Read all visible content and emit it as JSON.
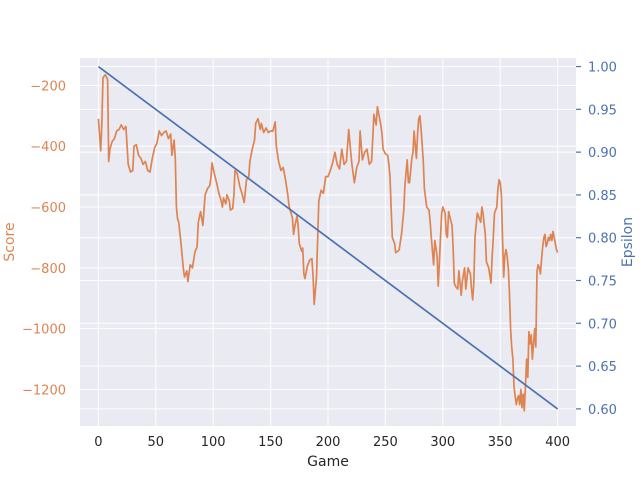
{
  "chart_data": {
    "type": "line",
    "title": "",
    "xlabel": "Game",
    "ylabel_left": "Score",
    "ylabel_right": "Epsilon",
    "xlim": [
      -16,
      416
    ],
    "ylim_left": [
      -1320,
      -110
    ],
    "ylim_right": [
      0.58,
      1.01
    ],
    "xticks": [
      0,
      50,
      100,
      150,
      200,
      250,
      300,
      350,
      400
    ],
    "yticks_left": [
      -200,
      -400,
      -600,
      -800,
      -1000,
      -1200
    ],
    "yticks_right": [
      1.0,
      0.95,
      0.9,
      0.85,
      0.8,
      0.75,
      0.7,
      0.65,
      0.6
    ],
    "grid": true,
    "colors": {
      "score": "#dd8452",
      "epsilon": "#4c72b0",
      "background": "#eaeaf2",
      "grid": "#ffffff",
      "tick_left": "#dd8452",
      "tick_right": "#4c72b0",
      "tick_bottom": "#262626"
    },
    "series": [
      {
        "axis": "left",
        "points": [
          [
            0,
            -310
          ],
          [
            2,
            -415
          ],
          [
            3,
            -330
          ],
          [
            4,
            -175
          ],
          [
            6,
            -165
          ],
          [
            8,
            -180
          ],
          [
            9,
            -450
          ],
          [
            10,
            -410
          ],
          [
            12,
            -385
          ],
          [
            14,
            -375
          ],
          [
            16,
            -350
          ],
          [
            18,
            -345
          ],
          [
            20,
            -330
          ],
          [
            22,
            -345
          ],
          [
            24,
            -335
          ],
          [
            26,
            -460
          ],
          [
            28,
            -485
          ],
          [
            30,
            -480
          ],
          [
            31,
            -400
          ],
          [
            33,
            -395
          ],
          [
            35,
            -430
          ],
          [
            37,
            -440
          ],
          [
            39,
            -460
          ],
          [
            41,
            -450
          ],
          [
            43,
            -480
          ],
          [
            45,
            -485
          ],
          [
            47,
            -440
          ],
          [
            49,
            -405
          ],
          [
            51,
            -390
          ],
          [
            53,
            -350
          ],
          [
            55,
            -365
          ],
          [
            57,
            -355
          ],
          [
            59,
            -350
          ],
          [
            61,
            -375
          ],
          [
            63,
            -360
          ],
          [
            64,
            -430
          ],
          [
            66,
            -380
          ],
          [
            67,
            -440
          ],
          [
            68,
            -600
          ],
          [
            69,
            -640
          ],
          [
            70,
            -650
          ],
          [
            72,
            -720
          ],
          [
            74,
            -800
          ],
          [
            75,
            -830
          ],
          [
            77,
            -810
          ],
          [
            78,
            -845
          ],
          [
            80,
            -790
          ],
          [
            82,
            -800
          ],
          [
            84,
            -750
          ],
          [
            86,
            -730
          ],
          [
            87,
            -650
          ],
          [
            89,
            -615
          ],
          [
            91,
            -660
          ],
          [
            93,
            -560
          ],
          [
            95,
            -540
          ],
          [
            97,
            -530
          ],
          [
            98,
            -505
          ],
          [
            99,
            -455
          ],
          [
            101,
            -490
          ],
          [
            103,
            -520
          ],
          [
            105,
            -555
          ],
          [
            107,
            -580
          ],
          [
            108,
            -600
          ],
          [
            109,
            -570
          ],
          [
            111,
            -590
          ],
          [
            112,
            -560
          ],
          [
            114,
            -580
          ],
          [
            115,
            -610
          ],
          [
            117,
            -605
          ],
          [
            118,
            -560
          ],
          [
            119,
            -480
          ],
          [
            121,
            -490
          ],
          [
            123,
            -530
          ],
          [
            125,
            -555
          ],
          [
            127,
            -585
          ],
          [
            129,
            -510
          ],
          [
            131,
            -500
          ],
          [
            132,
            -450
          ],
          [
            134,
            -410
          ],
          [
            136,
            -380
          ],
          [
            137,
            -325
          ],
          [
            139,
            -310
          ],
          [
            141,
            -345
          ],
          [
            142,
            -325
          ],
          [
            144,
            -355
          ],
          [
            146,
            -340
          ],
          [
            148,
            -355
          ],
          [
            150,
            -350
          ],
          [
            152,
            -350
          ],
          [
            154,
            -320
          ],
          [
            155,
            -400
          ],
          [
            157,
            -450
          ],
          [
            159,
            -480
          ],
          [
            161,
            -470
          ],
          [
            163,
            -510
          ],
          [
            165,
            -560
          ],
          [
            166,
            -595
          ],
          [
            167,
            -610
          ],
          [
            169,
            -635
          ],
          [
            170,
            -690
          ],
          [
            171,
            -665
          ],
          [
            173,
            -630
          ],
          [
            174,
            -660
          ],
          [
            175,
            -720
          ],
          [
            177,
            -745
          ],
          [
            178,
            -735
          ],
          [
            179,
            -820
          ],
          [
            180,
            -835
          ],
          [
            182,
            -795
          ],
          [
            184,
            -775
          ],
          [
            186,
            -770
          ],
          [
            187,
            -830
          ],
          [
            188,
            -920
          ],
          [
            190,
            -830
          ],
          [
            191,
            -700
          ],
          [
            192,
            -580
          ],
          [
            194,
            -545
          ],
          [
            196,
            -555
          ],
          [
            198,
            -500
          ],
          [
            200,
            -500
          ],
          [
            202,
            -480
          ],
          [
            204,
            -455
          ],
          [
            206,
            -420
          ],
          [
            208,
            -460
          ],
          [
            210,
            -475
          ],
          [
            212,
            -410
          ],
          [
            214,
            -460
          ],
          [
            216,
            -450
          ],
          [
            218,
            -345
          ],
          [
            220,
            -430
          ],
          [
            221,
            -465
          ],
          [
            223,
            -520
          ],
          [
            225,
            -470
          ],
          [
            227,
            -450
          ],
          [
            228,
            -350
          ],
          [
            230,
            -445
          ],
          [
            232,
            -420
          ],
          [
            234,
            -410
          ],
          [
            236,
            -460
          ],
          [
            238,
            -450
          ],
          [
            239,
            -370
          ],
          [
            240,
            -295
          ],
          [
            242,
            -330
          ],
          [
            243,
            -270
          ],
          [
            244,
            -290
          ],
          [
            246,
            -330
          ],
          [
            247,
            -360
          ],
          [
            248,
            -410
          ],
          [
            250,
            -425
          ],
          [
            252,
            -430
          ],
          [
            253,
            -460
          ],
          [
            254,
            -500
          ],
          [
            255,
            -600
          ],
          [
            256,
            -700
          ],
          [
            258,
            -720
          ],
          [
            259,
            -750
          ],
          [
            261,
            -745
          ],
          [
            262,
            -740
          ],
          [
            264,
            -690
          ],
          [
            266,
            -610
          ],
          [
            267,
            -530
          ],
          [
            269,
            -445
          ],
          [
            270,
            -520
          ],
          [
            271,
            -520
          ],
          [
            273,
            -440
          ],
          [
            274,
            -420
          ],
          [
            275,
            -350
          ],
          [
            277,
            -440
          ],
          [
            278,
            -360
          ],
          [
            279,
            -310
          ],
          [
            280,
            -300
          ],
          [
            281,
            -340
          ],
          [
            283,
            -450
          ],
          [
            284,
            -540
          ],
          [
            286,
            -600
          ],
          [
            288,
            -610
          ],
          [
            289,
            -650
          ],
          [
            290,
            -700
          ],
          [
            292,
            -790
          ],
          [
            293,
            -710
          ],
          [
            295,
            -760
          ],
          [
            296,
            -860
          ],
          [
            297,
            -780
          ],
          [
            298,
            -700
          ],
          [
            299,
            -620
          ],
          [
            300,
            -600
          ],
          [
            302,
            -620
          ],
          [
            303,
            -690
          ],
          [
            304,
            -700
          ],
          [
            305,
            -615
          ],
          [
            306,
            -630
          ],
          [
            308,
            -660
          ],
          [
            309,
            -730
          ],
          [
            310,
            -850
          ],
          [
            311,
            -860
          ],
          [
            313,
            -870
          ],
          [
            314,
            -810
          ],
          [
            316,
            -890
          ],
          [
            317,
            -845
          ],
          [
            319,
            -800
          ],
          [
            320,
            -870
          ],
          [
            322,
            -800
          ],
          [
            324,
            -820
          ],
          [
            325,
            -870
          ],
          [
            326,
            -905
          ],
          [
            327,
            -850
          ],
          [
            328,
            -700
          ],
          [
            330,
            -620
          ],
          [
            331,
            -630
          ],
          [
            333,
            -650
          ],
          [
            334,
            -600
          ],
          [
            335,
            -620
          ],
          [
            337,
            -690
          ],
          [
            338,
            -780
          ],
          [
            340,
            -800
          ],
          [
            342,
            -850
          ],
          [
            343,
            -760
          ],
          [
            344,
            -700
          ],
          [
            345,
            -620
          ],
          [
            347,
            -600
          ],
          [
            348,
            -540
          ],
          [
            349,
            -510
          ],
          [
            350,
            -520
          ],
          [
            351,
            -560
          ],
          [
            352,
            -700
          ],
          [
            353,
            -830
          ],
          [
            354,
            -760
          ],
          [
            355,
            -740
          ],
          [
            356,
            -760
          ],
          [
            357,
            -800
          ],
          [
            358,
            -880
          ],
          [
            359,
            -1000
          ],
          [
            360,
            -1060
          ],
          [
            361,
            -1100
          ],
          [
            362,
            -1190
          ],
          [
            363,
            -1220
          ],
          [
            364,
            -1250
          ],
          [
            365,
            -1230
          ],
          [
            366,
            -1220
          ],
          [
            367,
            -1250
          ],
          [
            368,
            -1200
          ],
          [
            369,
            -1260
          ],
          [
            370,
            -1215
          ],
          [
            371,
            -1270
          ],
          [
            372,
            -1185
          ],
          [
            373,
            -1100
          ],
          [
            374,
            -1160
          ],
          [
            375,
            -1010
          ],
          [
            376,
            -1050
          ],
          [
            377,
            -1020
          ],
          [
            378,
            -1100
          ],
          [
            379,
            -1050
          ],
          [
            380,
            -1000
          ],
          [
            381,
            -1060
          ],
          [
            382,
            -810
          ],
          [
            383,
            -790
          ],
          [
            384,
            -800
          ],
          [
            385,
            -820
          ],
          [
            386,
            -770
          ],
          [
            387,
            -730
          ],
          [
            388,
            -700
          ],
          [
            389,
            -690
          ],
          [
            390,
            -730
          ],
          [
            391,
            -720
          ],
          [
            392,
            -700
          ],
          [
            393,
            -710
          ],
          [
            394,
            -690
          ],
          [
            395,
            -710
          ],
          [
            396,
            -680
          ],
          [
            397,
            -700
          ],
          [
            398,
            -720
          ],
          [
            399,
            -740
          ],
          [
            400,
            -750
          ]
        ]
      },
      {
        "axis": "right",
        "points": [
          [
            0,
            1.0
          ],
          [
            400,
            0.6
          ]
        ]
      }
    ]
  }
}
